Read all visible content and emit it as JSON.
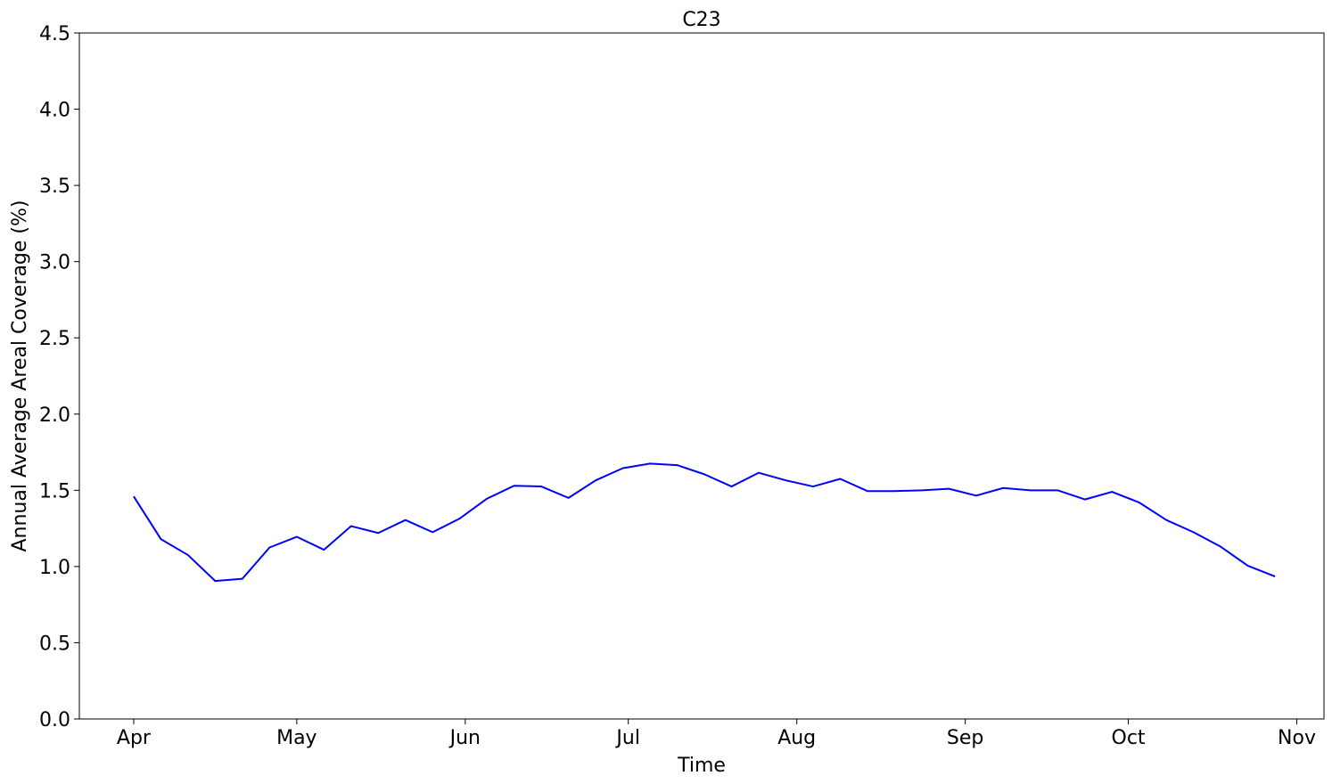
{
  "chart_data": {
    "type": "line",
    "title": "C23",
    "xlabel": "Time",
    "ylabel": "Annual Average Areal Coverage (%)",
    "ylim": [
      0,
      4.5
    ],
    "xlim": [
      "2023-03-22",
      "2023-11-06"
    ],
    "x_ticks": [
      {
        "label": "Apr",
        "date": "2023-04-01"
      },
      {
        "label": "May",
        "date": "2023-05-01"
      },
      {
        "label": "Jun",
        "date": "2023-06-01"
      },
      {
        "label": "Jul",
        "date": "2023-07-01"
      },
      {
        "label": "Aug",
        "date": "2023-08-01"
      },
      {
        "label": "Sep",
        "date": "2023-09-01"
      },
      {
        "label": "Oct",
        "date": "2023-10-01"
      },
      {
        "label": "Nov",
        "date": "2023-11-01"
      }
    ],
    "y_ticks": [
      "0.0",
      "0.5",
      "1.0",
      "1.5",
      "2.0",
      "2.5",
      "3.0",
      "3.5",
      "4.0",
      "4.5"
    ],
    "grid": false,
    "legend": "none",
    "series": [
      {
        "color": "#0000ff",
        "x": [
          "2023-04-01",
          "2023-04-06",
          "2023-04-11",
          "2023-04-16",
          "2023-04-21",
          "2023-04-26",
          "2023-05-01",
          "2023-05-06",
          "2023-05-11",
          "2023-05-16",
          "2023-05-21",
          "2023-05-26",
          "2023-05-31",
          "2023-06-05",
          "2023-06-10",
          "2023-06-15",
          "2023-06-20",
          "2023-06-25",
          "2023-06-30",
          "2023-07-05",
          "2023-07-10",
          "2023-07-15",
          "2023-07-20",
          "2023-07-25",
          "2023-07-30",
          "2023-08-04",
          "2023-08-09",
          "2023-08-14",
          "2023-08-19",
          "2023-08-24",
          "2023-08-29",
          "2023-09-03",
          "2023-09-08",
          "2023-09-13",
          "2023-09-18",
          "2023-09-23",
          "2023-09-28",
          "2023-10-03",
          "2023-10-08",
          "2023-10-13",
          "2023-10-18",
          "2023-10-23",
          "2023-10-28"
        ],
        "y": [
          1.46,
          1.18,
          1.075,
          0.905,
          0.92,
          1.125,
          1.195,
          1.11,
          1.265,
          1.22,
          1.305,
          1.225,
          1.315,
          1.445,
          1.53,
          1.525,
          1.45,
          1.565,
          1.645,
          1.675,
          1.665,
          1.605,
          1.525,
          1.615,
          1.565,
          1.525,
          1.575,
          1.495,
          1.495,
          1.5,
          1.51,
          1.465,
          1.515,
          1.5,
          1.5,
          1.44,
          1.49,
          1.42,
          1.305,
          1.225,
          1.13,
          1.005,
          0.935
        ]
      }
    ]
  }
}
